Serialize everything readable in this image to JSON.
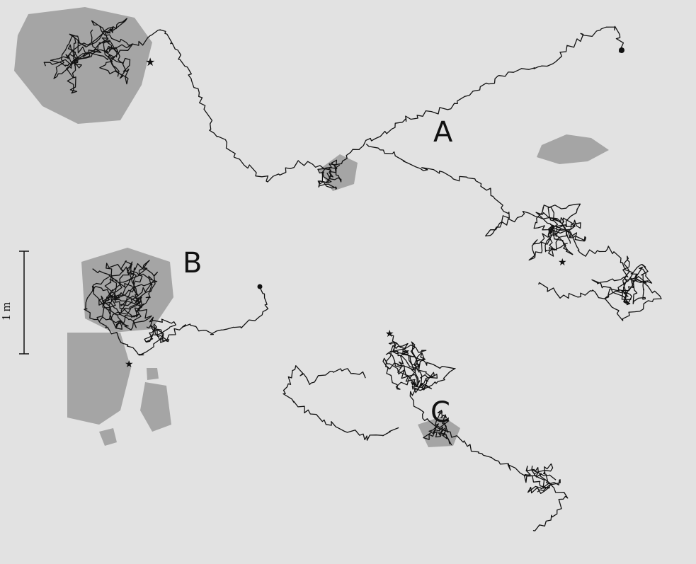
{
  "figure": {
    "panels": [
      {
        "label": "A"
      },
      {
        "label": "B"
      },
      {
        "label": "C"
      }
    ],
    "scale_bar": {
      "label": "1 m"
    }
  }
}
